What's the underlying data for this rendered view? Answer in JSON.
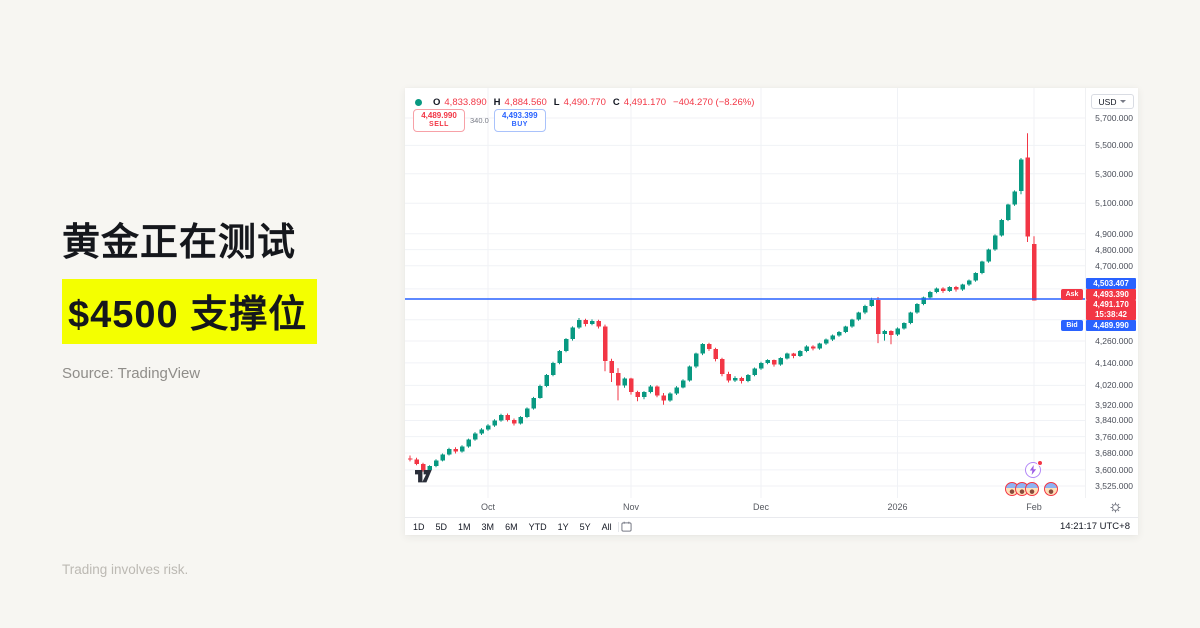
{
  "page": {
    "background": "#F7F6F2",
    "highlight_color": "#F4FF00"
  },
  "headline": {
    "line1": "黄金正在测试",
    "line2": "$4500 支撑位"
  },
  "source_text": "Source: TradingView",
  "disclaimer_text": "Trading involves risk.",
  "chart": {
    "legend": {
      "o_label": "O",
      "o": "4,833.890",
      "h_label": "H",
      "h": "4,884.560",
      "l_label": "L",
      "l": "4,490.770",
      "c_label": "C",
      "c": "4,491.170",
      "change": "−404.270 (−8.26%)"
    },
    "sell": {
      "price": "4,489.990",
      "label": "SELL"
    },
    "buy": {
      "price": "4,493.399",
      "label": "BUY"
    },
    "spread": "340.0",
    "currency": "USD",
    "price_labels": {
      "line_price": "4,503.407",
      "ask_tag": "Ask",
      "ask": "4,493.390",
      "last": "4,491.170",
      "countdown": "15:38:42",
      "bid_tag": "Bid",
      "bid": "4,489.990"
    },
    "ranges": [
      "1D",
      "5D",
      "1M",
      "3M",
      "6M",
      "YTD",
      "1Y",
      "5Y",
      "All"
    ],
    "clock": "14:21:17 UTC+8",
    "colors": {
      "up": "#089981",
      "down": "#F23645",
      "support_line": "#2962FF",
      "grid": "#F0F2F6"
    }
  },
  "chart_data": {
    "type": "candlestick",
    "title": "Gold (XAUUSD) daily candles testing 4500 support",
    "scale": "log",
    "y_range": [
      3525,
      5700
    ],
    "support_level": 4500,
    "y_ticks": [
      {
        "p": 5700,
        "label": "5,700.000"
      },
      {
        "p": 5500,
        "label": "5,500.000"
      },
      {
        "p": 5300,
        "label": "5,300.000"
      },
      {
        "p": 5100,
        "label": "5,100.000"
      },
      {
        "p": 4900,
        "label": "4,900.000"
      },
      {
        "p": 4800,
        "label": "4,800.000"
      },
      {
        "p": 4700,
        "label": "4,700.000"
      },
      {
        "p": 4560,
        "label": ""
      },
      {
        "p": 4380,
        "label": ""
      },
      {
        "p": 4260,
        "label": "4,260.000"
      },
      {
        "p": 4140,
        "label": "4,140.000"
      },
      {
        "p": 4020,
        "label": "4,020.000"
      },
      {
        "p": 3920,
        "label": "3,920.000"
      },
      {
        "p": 3840,
        "label": "3,840.000"
      },
      {
        "p": 3760,
        "label": "3,760.000"
      },
      {
        "p": 3680,
        "label": "3,680.000"
      },
      {
        "p": 3600,
        "label": "3,600.000"
      },
      {
        "p": 3525,
        "label": "3,525.000"
      }
    ],
    "x_ticks": [
      {
        "label": "Oct",
        "slot": 12
      },
      {
        "label": "Nov",
        "slot": 34
      },
      {
        "label": "Dec",
        "slot": 54
      },
      {
        "label": "2026",
        "slot": 75
      },
      {
        "label": "Feb",
        "slot": 96
      }
    ],
    "ohlc": [
      [
        3655,
        3668,
        3640,
        3650
      ],
      [
        3650,
        3657,
        3622,
        3628
      ],
      [
        3628,
        3634,
        3592,
        3600
      ],
      [
        3600,
        3622,
        3588,
        3618
      ],
      [
        3618,
        3650,
        3612,
        3645
      ],
      [
        3645,
        3678,
        3640,
        3672
      ],
      [
        3672,
        3706,
        3668,
        3700
      ],
      [
        3700,
        3708,
        3678,
        3688
      ],
      [
        3688,
        3718,
        3682,
        3712
      ],
      [
        3712,
        3750,
        3706,
        3745
      ],
      [
        3745,
        3782,
        3740,
        3775
      ],
      [
        3775,
        3802,
        3768,
        3795
      ],
      [
        3795,
        3822,
        3788,
        3815
      ],
      [
        3815,
        3846,
        3808,
        3840
      ],
      [
        3840,
        3874,
        3834,
        3868
      ],
      [
        3868,
        3875,
        3835,
        3842
      ],
      [
        3842,
        3850,
        3815,
        3825
      ],
      [
        3825,
        3862,
        3820,
        3858
      ],
      [
        3858,
        3906,
        3852,
        3900
      ],
      [
        3900,
        3960,
        3895,
        3955
      ],
      [
        3955,
        4024,
        3950,
        4018
      ],
      [
        4018,
        4080,
        4010,
        4075
      ],
      [
        4075,
        4146,
        4068,
        4140
      ],
      [
        4140,
        4210,
        4132,
        4205
      ],
      [
        4205,
        4276,
        4198,
        4270
      ],
      [
        4270,
        4342,
        4262,
        4335
      ],
      [
        4335,
        4390,
        4328,
        4378
      ],
      [
        4378,
        4385,
        4342,
        4355
      ],
      [
        4355,
        4382,
        4348,
        4372
      ],
      [
        4372,
        4380,
        4330,
        4340
      ],
      [
        4340,
        4352,
        4095,
        4150
      ],
      [
        4150,
        4162,
        4038,
        4085
      ],
      [
        4085,
        4112,
        3942,
        4020
      ],
      [
        4020,
        4062,
        4008,
        4055
      ],
      [
        4055,
        4060,
        3972,
        3985
      ],
      [
        3985,
        3992,
        3938,
        3960
      ],
      [
        3960,
        3990,
        3948,
        3985
      ],
      [
        3985,
        4022,
        3978,
        4015
      ],
      [
        4015,
        4020,
        3958,
        3968
      ],
      [
        3968,
        3980,
        3920,
        3942
      ],
      [
        3942,
        3984,
        3935,
        3978
      ],
      [
        3978,
        4016,
        3970,
        4010
      ],
      [
        4010,
        4052,
        4004,
        4045
      ],
      [
        4045,
        4126,
        4040,
        4120
      ],
      [
        4120,
        4196,
        4112,
        4190
      ],
      [
        4190,
        4248,
        4182,
        4242
      ],
      [
        4242,
        4250,
        4205,
        4215
      ],
      [
        4215,
        4222,
        4148,
        4160
      ],
      [
        4160,
        4168,
        4068,
        4080
      ],
      [
        4080,
        4092,
        4035,
        4045
      ],
      [
        4045,
        4068,
        4038,
        4060
      ],
      [
        4060,
        4066,
        4030,
        4042
      ],
      [
        4042,
        4080,
        4036,
        4075
      ],
      [
        4075,
        4115,
        4068,
        4110
      ],
      [
        4110,
        4146,
        4102,
        4140
      ],
      [
        4140,
        4160,
        4132,
        4155
      ],
      [
        4155,
        4158,
        4120,
        4130
      ],
      [
        4130,
        4170,
        4124,
        4165
      ],
      [
        4165,
        4196,
        4158,
        4190
      ],
      [
        4190,
        4194,
        4165,
        4178
      ],
      [
        4178,
        4210,
        4172,
        4205
      ],
      [
        4205,
        4236,
        4198,
        4230
      ],
      [
        4230,
        4236,
        4208,
        4218
      ],
      [
        4218,
        4250,
        4212,
        4245
      ],
      [
        4245,
        4274,
        4238,
        4268
      ],
      [
        4268,
        4296,
        4260,
        4290
      ],
      [
        4290,
        4316,
        4284,
        4310
      ],
      [
        4310,
        4346,
        4304,
        4340
      ],
      [
        4340,
        4386,
        4334,
        4380
      ],
      [
        4380,
        4426,
        4374,
        4420
      ],
      [
        4420,
        4466,
        4412,
        4460
      ],
      [
        4460,
        4508,
        4455,
        4495
      ],
      [
        4495,
        4512,
        4248,
        4300
      ],
      [
        4300,
        4322,
        4262,
        4315
      ],
      [
        4315,
        4320,
        4242,
        4295
      ],
      [
        4295,
        4336,
        4288,
        4330
      ],
      [
        4330,
        4366,
        4324,
        4360
      ],
      [
        4360,
        4426,
        4354,
        4420
      ],
      [
        4420,
        4476,
        4414,
        4470
      ],
      [
        4470,
        4514,
        4464,
        4508
      ],
      [
        4508,
        4548,
        4502,
        4542
      ],
      [
        4542,
        4568,
        4534,
        4562
      ],
      [
        4562,
        4570,
        4536,
        4548
      ],
      [
        4548,
        4576,
        4542,
        4570
      ],
      [
        4570,
        4578,
        4544,
        4555
      ],
      [
        4555,
        4590,
        4548,
        4585
      ],
      [
        4585,
        4616,
        4578,
        4610
      ],
      [
        4610,
        4660,
        4602,
        4655
      ],
      [
        4655,
        4730,
        4648,
        4725
      ],
      [
        4725,
        4806,
        4718,
        4800
      ],
      [
        4800,
        4896,
        4792,
        4890
      ],
      [
        4890,
        4996,
        4882,
        4990
      ],
      [
        4990,
        5096,
        4982,
        5090
      ],
      [
        5090,
        5186,
        5082,
        5180
      ],
      [
        5180,
        5410,
        5160,
        5400
      ],
      [
        5412,
        5588,
        4848,
        4882
      ],
      [
        4833.89,
        4884.56,
        4490.77,
        4491.17
      ]
    ]
  }
}
